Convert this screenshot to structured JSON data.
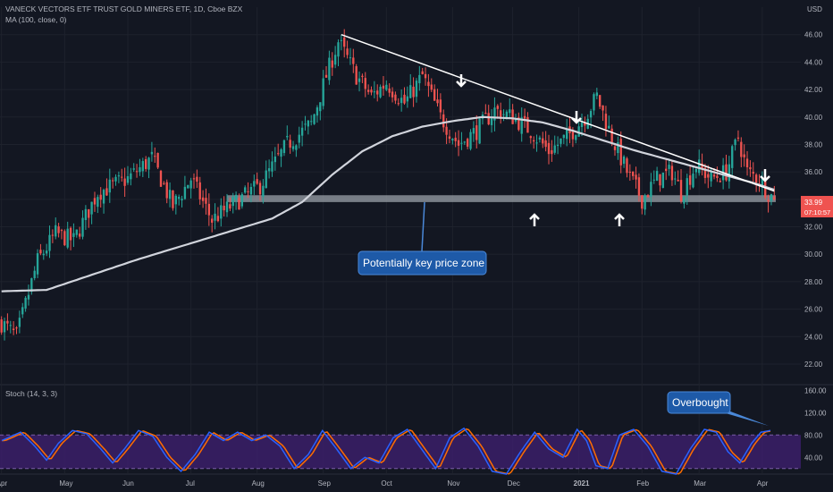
{
  "header": {
    "symbol_title": "VANECK VECTORS ETF TRUST GOLD MINERS ETF, 1D, Cboe BZX",
    "ma_label": "MA (100, close, 0)",
    "currency": "USD",
    "stoch_label": "Stoch (14, 3, 3)"
  },
  "price_tag": {
    "price": "33.99",
    "countdown": "07:10:57"
  },
  "annotations": {
    "key_zone_label": "Potentially key price zone",
    "overbought_label": "Overbought"
  },
  "colors": {
    "background": "#131722",
    "up": "#26a69a",
    "down": "#ef5350",
    "ma": "#d1d4dc",
    "trendline": "#ffffff",
    "zone": "#9aa0a8",
    "callout": "#1e5aa8",
    "stoch_k": "#2962ff",
    "stoch_d": "#ff6d00",
    "stoch_band": "#3d1f6e"
  },
  "chart_data": [
    {
      "type": "candlestick",
      "x_ticks": [
        "Apr",
        "May",
        "Jun",
        "Jul",
        "Aug",
        "Sep",
        "Oct",
        "Nov",
        "Dec",
        "2021",
        "Feb",
        "Mar",
        "Apr"
      ],
      "y_ticks": [
        "22.00",
        "24.00",
        "26.00",
        "28.00",
        "30.00",
        "32.00",
        "34.00",
        "36.00",
        "38.00",
        "40.00",
        "42.00",
        "44.00",
        "46.00"
      ],
      "ylim": [
        20.5,
        48
      ],
      "last_price": 33.99,
      "candle_count": 258,
      "close_waypoints": [
        [
          0,
          25.0
        ],
        [
          5,
          24.0
        ],
        [
          12,
          29.5
        ],
        [
          18,
          31.5
        ],
        [
          24,
          31.0
        ],
        [
          32,
          34.5
        ],
        [
          42,
          35.5
        ],
        [
          50,
          37.0
        ],
        [
          57,
          33.5
        ],
        [
          63,
          35.5
        ],
        [
          70,
          32.5
        ],
        [
          78,
          33.8
        ],
        [
          86,
          35.0
        ],
        [
          95,
          38.0
        ],
        [
          103,
          39.5
        ],
        [
          108,
          43.0
        ],
        [
          112,
          45.5
        ],
        [
          118,
          43.0
        ],
        [
          123,
          41.5
        ],
        [
          128,
          42.5
        ],
        [
          134,
          41.0
        ],
        [
          140,
          43.0
        ],
        [
          146,
          40.0
        ],
        [
          152,
          38.0
        ],
        [
          158,
          39.0
        ],
        [
          164,
          40.5
        ],
        [
          170,
          40.0
        ],
        [
          176,
          39.0
        ],
        [
          182,
          37.5
        ],
        [
          188,
          38.5
        ],
        [
          194,
          40.0
        ],
        [
          198,
          41.5
        ],
        [
          203,
          38.5
        ],
        [
          208,
          36.0
        ],
        [
          213,
          34.0
        ],
        [
          218,
          35.5
        ],
        [
          223,
          36.0
        ],
        [
          226,
          34.5
        ],
        [
          231,
          36.5
        ],
        [
          236,
          35.5
        ],
        [
          241,
          36.0
        ],
        [
          245,
          38.5
        ],
        [
          248,
          36.0
        ],
        [
          252,
          35.5
        ],
        [
          255,
          34.5
        ],
        [
          257,
          33.99
        ]
      ],
      "series": [
        {
          "name": "MA (100, close, 0)",
          "points": [
            [
              0,
              27.3
            ],
            [
              15,
              27.4
            ],
            [
              30,
              28.5
            ],
            [
              45,
              29.6
            ],
            [
              60,
              30.6
            ],
            [
              75,
              31.6
            ],
            [
              90,
              32.6
            ],
            [
              100,
              33.8
            ],
            [
              110,
              35.8
            ],
            [
              120,
              37.5
            ],
            [
              130,
              38.6
            ],
            [
              140,
              39.3
            ],
            [
              150,
              39.7
            ],
            [
              160,
              40.0
            ],
            [
              170,
              39.9
            ],
            [
              180,
              39.6
            ],
            [
              190,
              39.0
            ],
            [
              200,
              38.3
            ],
            [
              210,
              37.6
            ],
            [
              220,
              37.0
            ],
            [
              230,
              36.4
            ],
            [
              240,
              35.8
            ],
            [
              250,
              35.2
            ],
            [
              257,
              34.7
            ]
          ]
        }
      ],
      "trendline": {
        "from": [
          113,
          46.0
        ],
        "to": [
          257,
          34.6
        ]
      },
      "key_zone": {
        "from_index": 75,
        "to_index": 257,
        "low": 33.8,
        "high": 34.3
      },
      "arrows_down": [
        [
          199,
          42.6
        ],
        [
          246,
          40.2
        ],
        [
          253,
          36.0
        ]
      ],
      "arrows_up": [
        [
          230,
          31.8
        ],
        [
          266,
          31.8
        ]
      ]
    },
    {
      "type": "line",
      "title": "Stoch (14, 3, 3)",
      "y_ticks": [
        "40.00",
        "80.00",
        "120.00",
        "160.00"
      ],
      "ylim": [
        10,
        170
      ],
      "band": [
        20,
        80
      ],
      "k_waypoints": [
        [
          0,
          70
        ],
        [
          8,
          85
        ],
        [
          14,
          60
        ],
        [
          19,
          35
        ],
        [
          24,
          65
        ],
        [
          30,
          88
        ],
        [
          36,
          82
        ],
        [
          42,
          55
        ],
        [
          47,
          30
        ],
        [
          52,
          55
        ],
        [
          58,
          88
        ],
        [
          64,
          78
        ],
        [
          70,
          40
        ],
        [
          76,
          15
        ],
        [
          82,
          45
        ],
        [
          88,
          85
        ],
        [
          94,
          70
        ],
        [
          100,
          85
        ],
        [
          106,
          70
        ],
        [
          112,
          80
        ],
        [
          118,
          60
        ],
        [
          124,
          20
        ],
        [
          130,
          45
        ],
        [
          136,
          88
        ],
        [
          142,
          55
        ],
        [
          148,
          20
        ],
        [
          154,
          40
        ],
        [
          160,
          30
        ],
        [
          166,
          75
        ],
        [
          172,
          90
        ],
        [
          178,
          55
        ],
        [
          184,
          20
        ],
        [
          190,
          75
        ],
        [
          196,
          92
        ],
        [
          202,
          60
        ],
        [
          208,
          15
        ],
        [
          214,
          10
        ],
        [
          220,
          50
        ],
        [
          226,
          85
        ],
        [
          232,
          55
        ],
        [
          238,
          40
        ],
        [
          244,
          90
        ],
        [
          248,
          70
        ],
        [
          252,
          25
        ],
        [
          257,
          20
        ],
        [
          262,
          80
        ],
        [
          268,
          90
        ],
        [
          274,
          60
        ],
        [
          280,
          15
        ],
        [
          286,
          10
        ],
        [
          292,
          55
        ],
        [
          298,
          90
        ],
        [
          303,
          85
        ],
        [
          308,
          50
        ],
        [
          313,
          30
        ],
        [
          318,
          65
        ],
        [
          322,
          85
        ],
        [
          326,
          88
        ]
      ]
    }
  ]
}
